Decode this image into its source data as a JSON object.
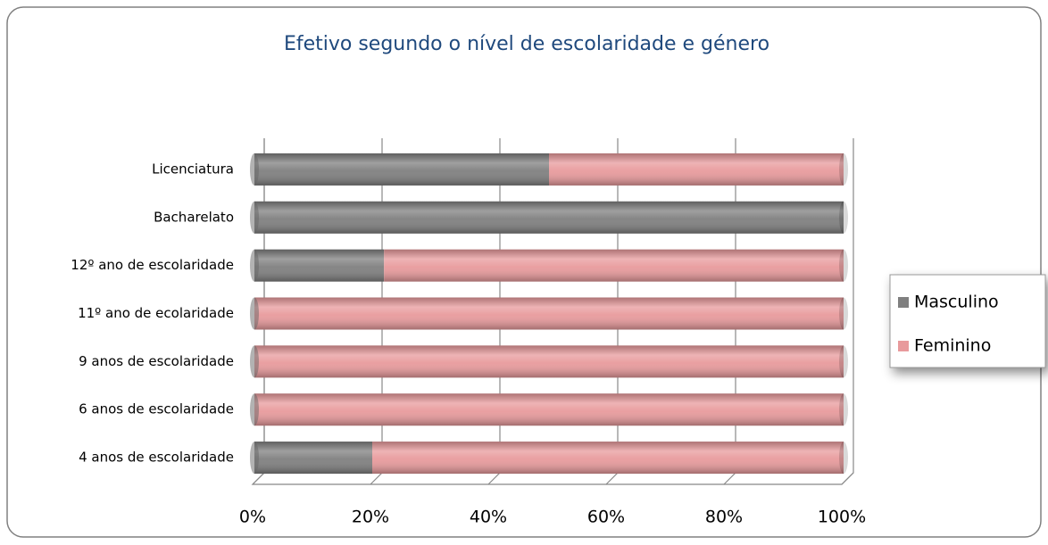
{
  "chart_data": {
    "type": "bar",
    "orientation": "horizontal",
    "stacked": "percent",
    "title": "Efetivo segundo o nível de escolaridade e género",
    "categories": [
      "Licenciatura",
      "Bacharelato",
      "12º ano de escolaridade",
      "11º ano de ecolaridade",
      "9 anos de escolaridade",
      "6 anos de escolaridade",
      "4 anos de escolaridade"
    ],
    "series": [
      {
        "name": "Masculino",
        "color": "#7f7f7f",
        "values": [
          50,
          100,
          22,
          0,
          0,
          0,
          20
        ]
      },
      {
        "name": "Feminino",
        "color": "#e89a9c",
        "values": [
          50,
          0,
          78,
          100,
          100,
          100,
          80
        ]
      }
    ],
    "xlim": [
      0,
      100
    ],
    "xticks": [
      {
        "value": 0,
        "label": "0%"
      },
      {
        "value": 20,
        "label": "20%"
      },
      {
        "value": 40,
        "label": "40%"
      },
      {
        "value": 60,
        "label": "60%"
      },
      {
        "value": 80,
        "label": "80%"
      },
      {
        "value": 100,
        "label": "100%"
      }
    ],
    "grid": true,
    "legend": "right"
  }
}
